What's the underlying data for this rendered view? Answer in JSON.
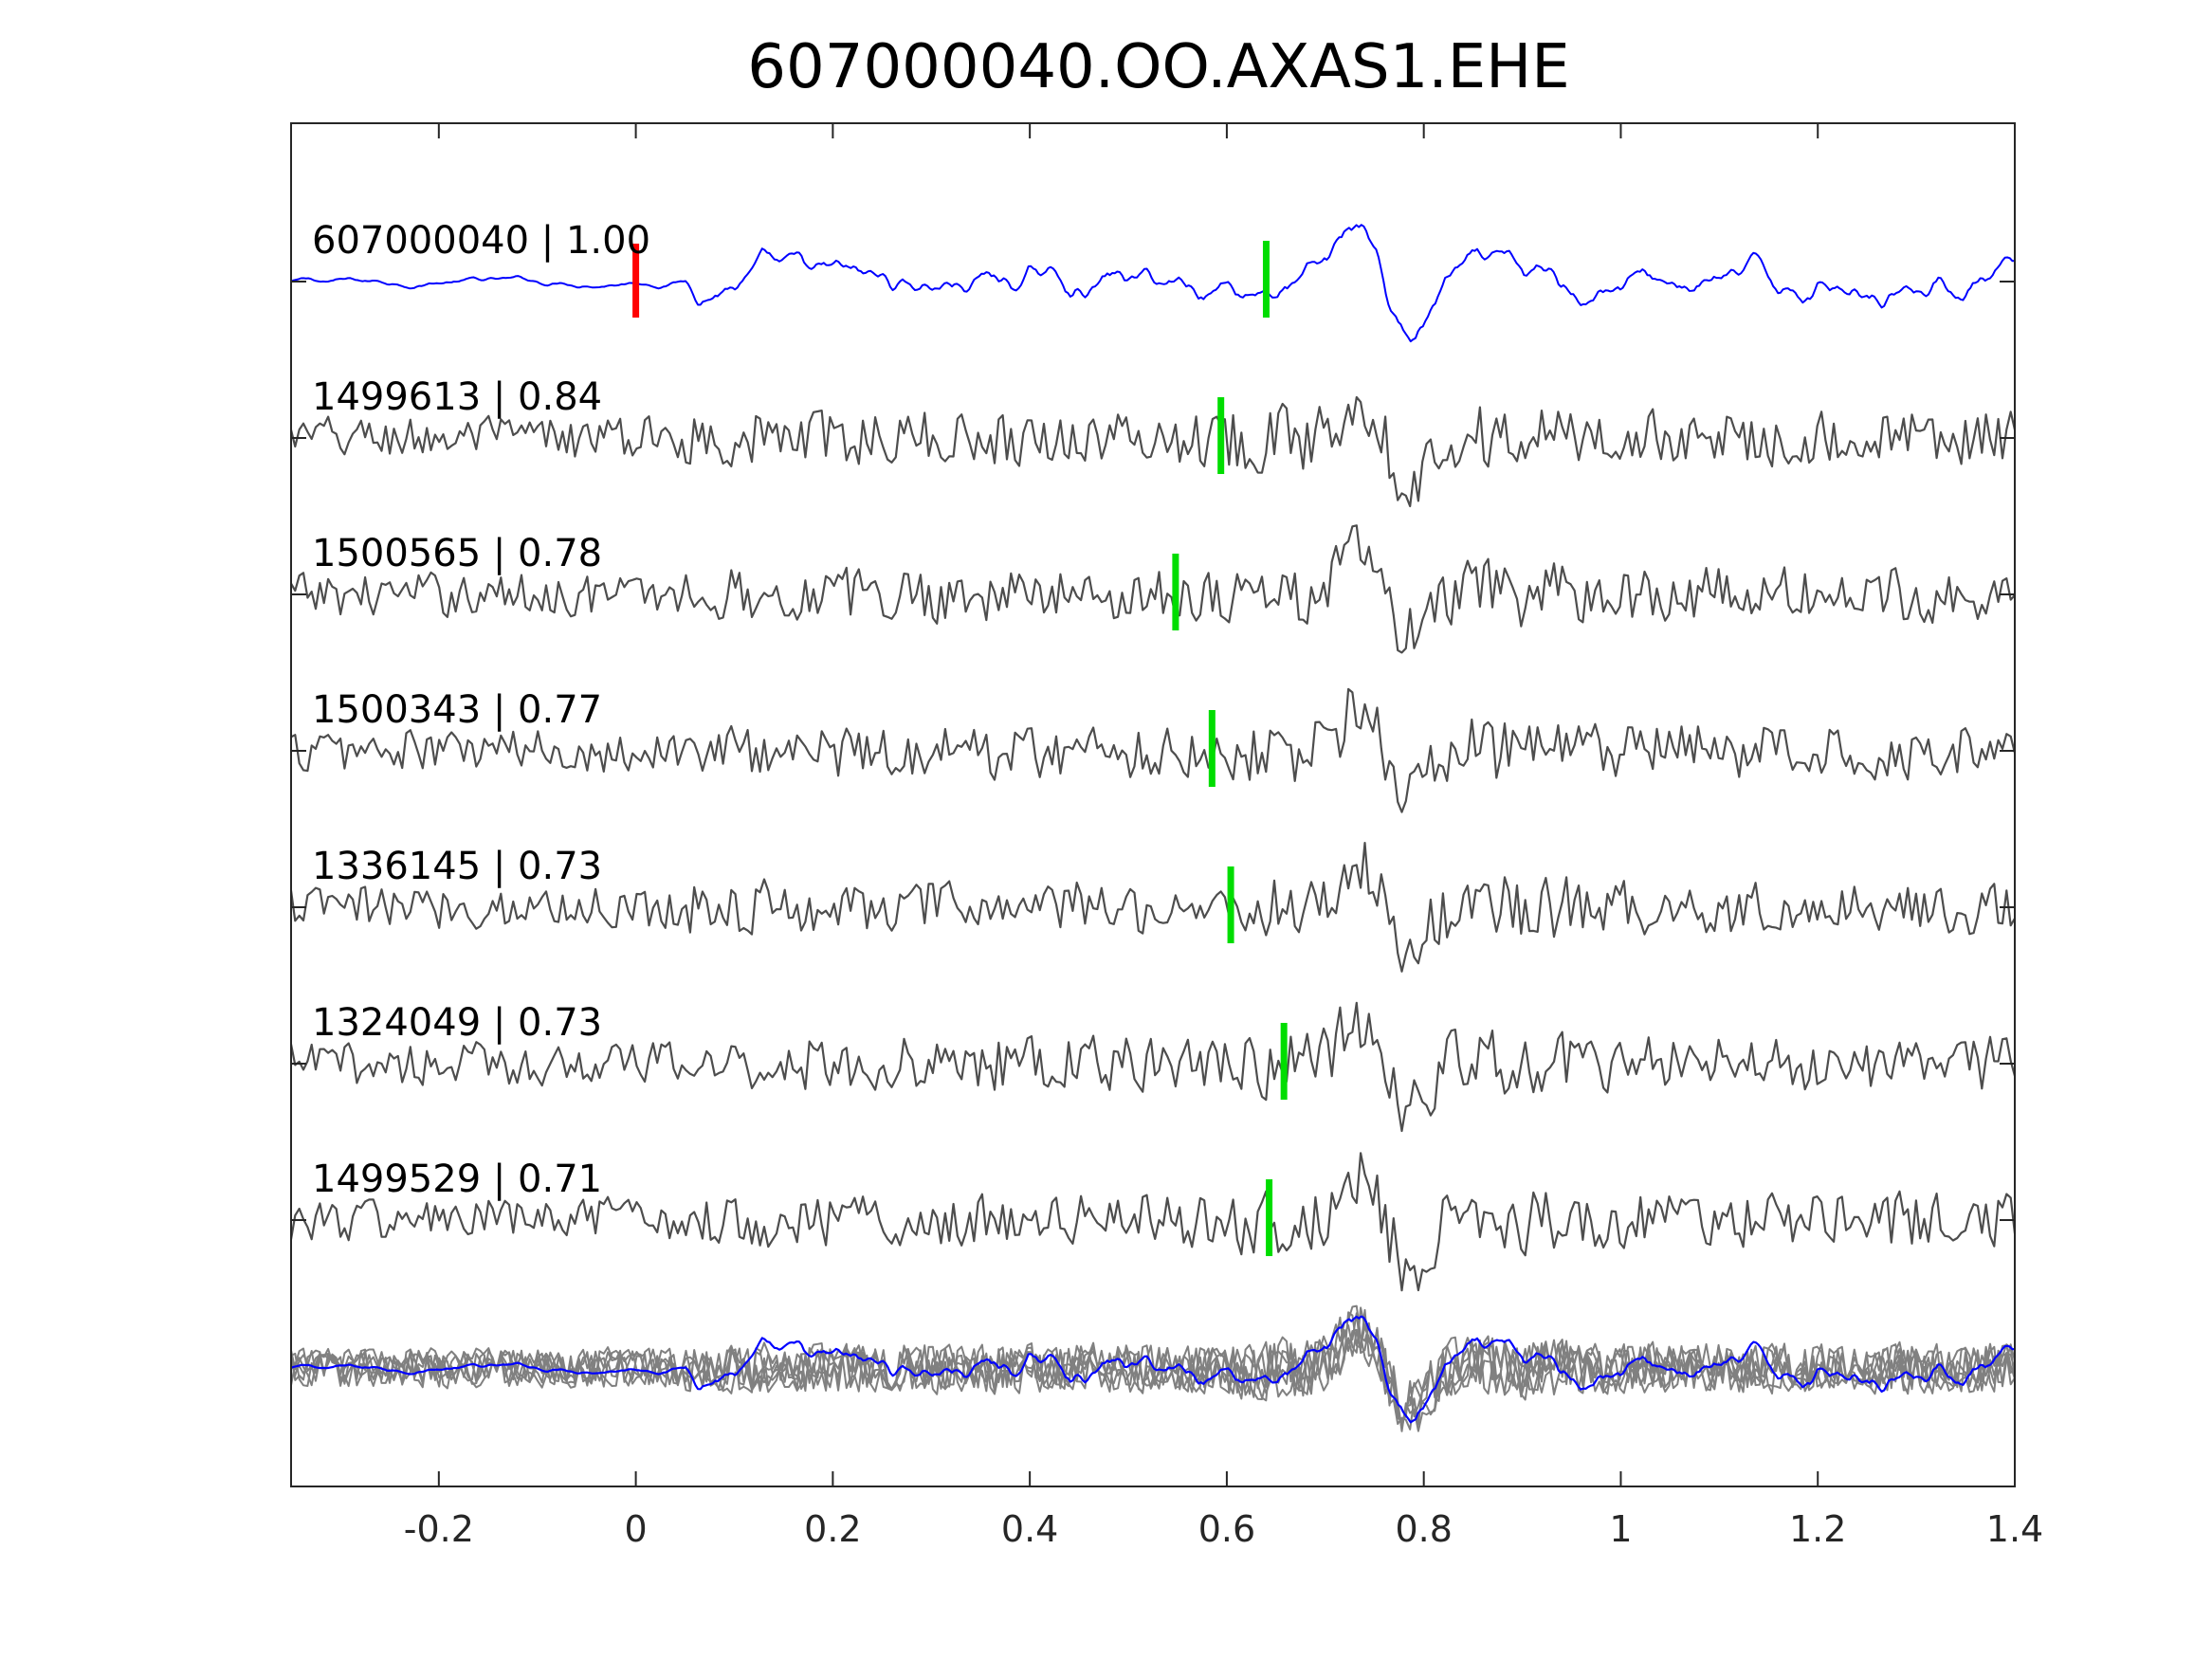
{
  "chart_data": {
    "type": "line",
    "title": "607000040.OO.AXAS1.EHE",
    "xlabel": "",
    "ylabel": "",
    "xlim": [
      -0.35,
      1.4
    ],
    "xticks": [
      "-0.2",
      "0",
      "0.2",
      "0.4",
      "0.6",
      "0.8",
      "1",
      "1.2",
      "1.4"
    ],
    "xtick_values": [
      -0.2,
      0,
      0.2,
      0.4,
      0.6,
      0.8,
      1,
      1.2,
      1.4
    ],
    "grid": false,
    "colors": {
      "master": "#0000ff",
      "neighbor": "#4d4d4d",
      "stack_neighbor": "#808080",
      "master_pick": "#ff0000",
      "pick": "#00dd00",
      "axes": "#262626"
    },
    "series": [
      {
        "id": "607000040",
        "label": "607000040 | 1.00",
        "correlation": 1.0,
        "pick_time": 0.64,
        "reference_pick_time": 0.0,
        "is_master": true
      },
      {
        "id": "1499613",
        "label": "1499613 | 0.84",
        "correlation": 0.84,
        "pick_time": 0.594
      },
      {
        "id": "1500565",
        "label": "1500565 | 0.78",
        "correlation": 0.78,
        "pick_time": 0.548
      },
      {
        "id": "1500343",
        "label": "1500343 | 0.77",
        "correlation": 0.77,
        "pick_time": 0.585
      },
      {
        "id": "1336145",
        "label": "1336145 | 0.73",
        "correlation": 0.73,
        "pick_time": 0.604
      },
      {
        "id": "1324049",
        "label": "1324049 | 0.73",
        "correlation": 0.73,
        "pick_time": 0.658
      },
      {
        "id": "1499529",
        "label": "1499529 | 0.71",
        "correlation": 0.71,
        "pick_time": 0.643
      }
    ],
    "stack": {
      "description": "overlay of all aligned traces"
    }
  }
}
